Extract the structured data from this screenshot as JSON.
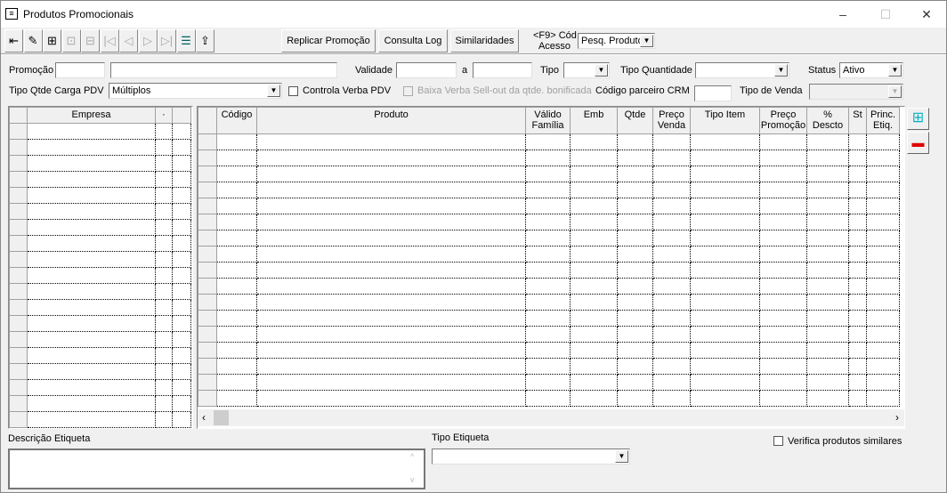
{
  "window": {
    "title": "Produtos Promocionais",
    "icon": "form-icon",
    "controls": [
      "–",
      "☐",
      "✕"
    ]
  },
  "toolbar": {
    "icons": [
      {
        "name": "exit-icon",
        "glyph": "⇤",
        "enabled": true
      },
      {
        "name": "eraser-icon",
        "glyph": "✎",
        "enabled": true
      },
      {
        "name": "add-record-icon",
        "glyph": "⊞",
        "enabled": true
      },
      {
        "name": "upload-disabled-icon",
        "glyph": "⊡",
        "enabled": false
      },
      {
        "name": "remove-disabled-icon",
        "glyph": "⊟",
        "enabled": false
      },
      {
        "name": "first-record-icon",
        "glyph": "|◁",
        "enabled": false
      },
      {
        "name": "prev-record-icon",
        "glyph": "◁",
        "enabled": false
      },
      {
        "name": "next-record-icon",
        "glyph": "▷",
        "enabled": false
      },
      {
        "name": "last-record-icon",
        "glyph": "▷|",
        "enabled": false
      },
      {
        "name": "list-view-icon",
        "glyph": "☰",
        "enabled": true
      },
      {
        "name": "export-icon",
        "glyph": "⇪",
        "enabled": true
      }
    ],
    "replicar": "Replicar Promoção",
    "consulta_log": "Consulta Log",
    "similaridades": "Similaridades",
    "f9_label_1": "<F9> Cód",
    "f9_label_2": "Acesso",
    "pesq_value": "Pesq. Produto"
  },
  "form": {
    "promocao": "Promoção",
    "promocao_code": "",
    "promocao_desc": "",
    "validade": "Validade",
    "validade_from": "",
    "a": "a",
    "validade_to": "",
    "tipo": "Tipo",
    "tipo_value": "",
    "tipo_quantidade": "Tipo Quantidade",
    "tipo_quantidade_value": "",
    "status": "Status",
    "status_value": "Ativo",
    "tipo_qtde_carga": "Tipo Qtde Carga PDV",
    "tipo_qtde_carga_value": "Múltiplos",
    "controla_verba": "Controla Verba PDV",
    "controla_verba_checked": false,
    "baixa_verba": "Baixa Verba Sell-out da qtde. bonificada",
    "baixa_verba_checked": false,
    "codigo_crm": "Código parceiro CRM",
    "codigo_crm_value": "",
    "tipo_venda": "Tipo de Venda",
    "tipo_venda_value": ""
  },
  "empresa_grid": {
    "columns": [
      "Empresa",
      "·",
      ""
    ]
  },
  "produto_grid": {
    "columns": [
      "Código",
      "Produto",
      "Válido Família",
      "Emb",
      "Qtde",
      "Preço Venda",
      "Tipo Item",
      "Preço Promoção",
      "% Descto",
      "St",
      "Princ. Etiq."
    ]
  },
  "side_buttons": [
    {
      "name": "add-item-icon"
    },
    {
      "name": "remove-item-icon"
    }
  ],
  "bottom": {
    "descricao_etiqueta": "Descrição Etiqueta",
    "descricao_value": "",
    "tipo_etiqueta": "Tipo Etiqueta",
    "tipo_etiqueta_value": "",
    "verifica": "Verifica produtos similares",
    "verifica_checked": false
  }
}
